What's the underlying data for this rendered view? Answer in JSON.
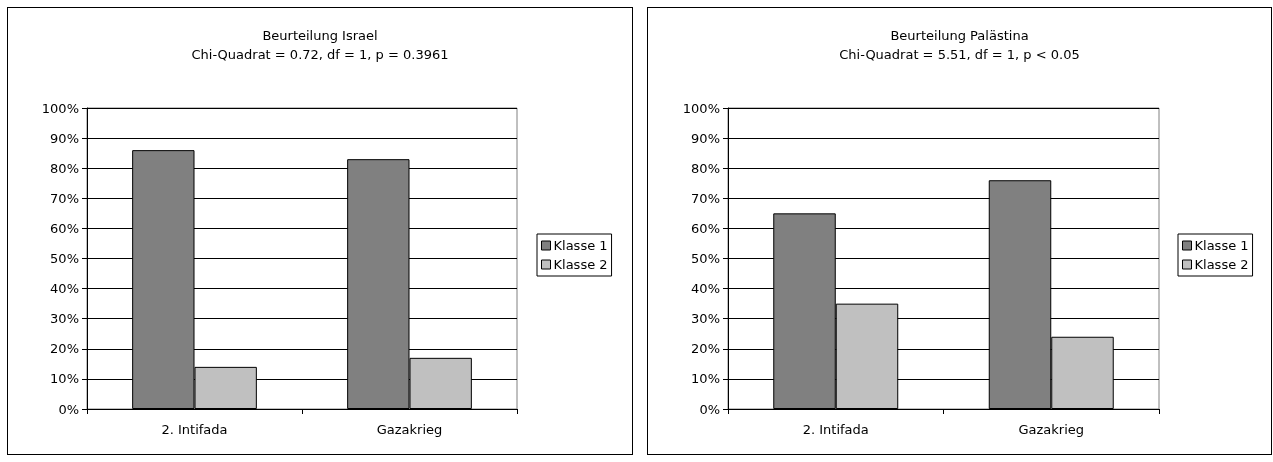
{
  "chart_data": [
    {
      "type": "bar",
      "title": "Beurteilung Israel",
      "subtitle": "Chi-Quadrat = 0.72, df = 1, p = 0.3961",
      "categories": [
        "2. Intifada",
        "Gazakrieg"
      ],
      "series": [
        {
          "name": "Klasse 1",
          "color": "#808080",
          "values": [
            86,
            83
          ]
        },
        {
          "name": "Klasse 2",
          "color": "#c0c0c0",
          "values": [
            14,
            17
          ]
        }
      ],
      "ylim": [
        0,
        100
      ],
      "yticks": [
        {
          "value": 0,
          "label": "0%"
        },
        {
          "value": 10,
          "label": "10%"
        },
        {
          "value": 20,
          "label": "20%"
        },
        {
          "value": 30,
          "label": "30%"
        },
        {
          "value": 40,
          "label": "40%"
        },
        {
          "value": 50,
          "label": "50%"
        },
        {
          "value": 60,
          "label": "60%"
        },
        {
          "value": 70,
          "label": "70%"
        },
        {
          "value": 80,
          "label": "80%"
        },
        {
          "value": 90,
          "label": "90%"
        },
        {
          "value": 100,
          "label": "100%"
        }
      ],
      "grid": "y",
      "legend": "right"
    },
    {
      "type": "bar",
      "title": "Beurteilung Palästina",
      "subtitle": "Chi-Quadrat = 5.51, df = 1, p < 0.05",
      "categories": [
        "2. Intifada",
        "Gazakrieg"
      ],
      "series": [
        {
          "name": "Klasse 1",
          "color": "#808080",
          "values": [
            65,
            76
          ]
        },
        {
          "name": "Klasse 2",
          "color": "#c0c0c0",
          "values": [
            35,
            24
          ]
        }
      ],
      "ylim": [
        0,
        100
      ],
      "yticks": [
        {
          "value": 0,
          "label": "0%"
        },
        {
          "value": 10,
          "label": "10%"
        },
        {
          "value": 20,
          "label": "20%"
        },
        {
          "value": 30,
          "label": "30%"
        },
        {
          "value": 40,
          "label": "40%"
        },
        {
          "value": 50,
          "label": "50%"
        },
        {
          "value": 60,
          "label": "60%"
        },
        {
          "value": 70,
          "label": "70%"
        },
        {
          "value": 80,
          "label": "80%"
        },
        {
          "value": 90,
          "label": "90%"
        },
        {
          "value": 100,
          "label": "100%"
        }
      ],
      "grid": "y",
      "legend": "right"
    }
  ]
}
